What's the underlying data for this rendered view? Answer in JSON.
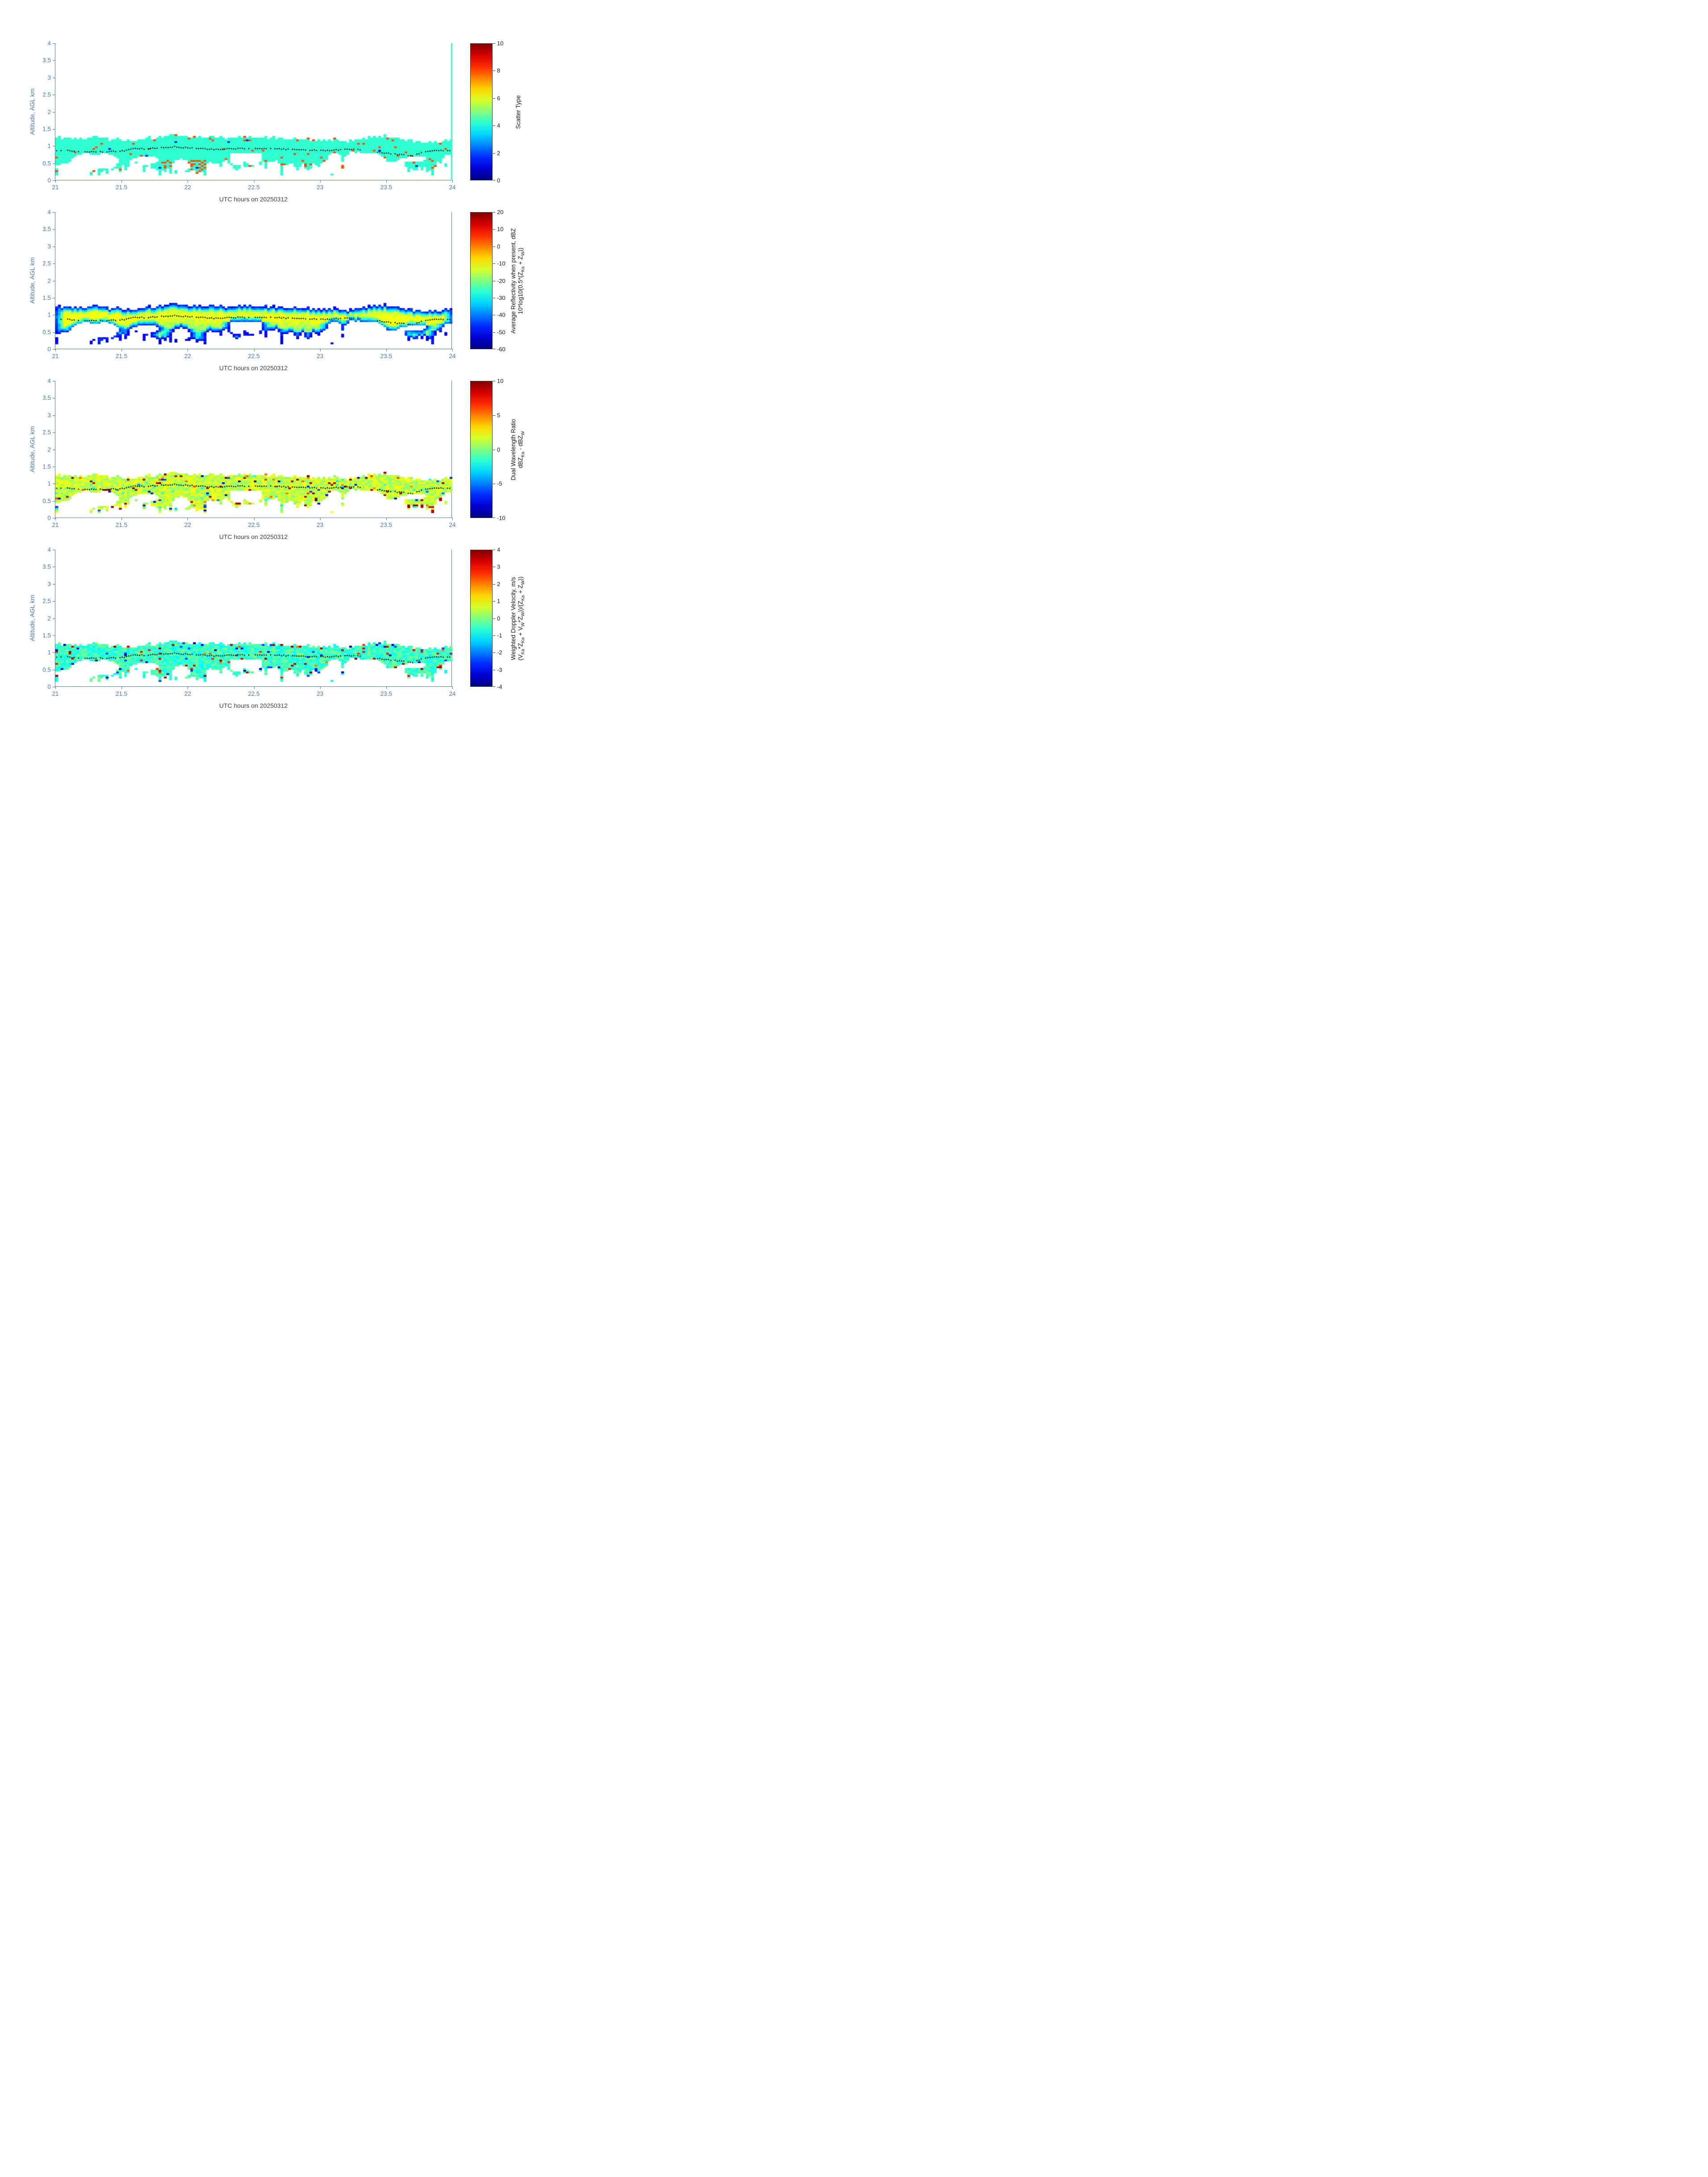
{
  "figure": {
    "background": "#ffffff",
    "axis_color": "#4878b8",
    "tick_label_color": "#4878b8",
    "xlabel_color": "#404040",
    "colorbar_text_color": "#1a1a1a",
    "overlay_dot_color": "#000000",
    "colormap": "jet"
  },
  "shared_axes": {
    "xlabel": "UTC hours on 20250312",
    "ylabel": "Altitude, AGL km",
    "xlim": [
      21,
      24
    ],
    "ylim": [
      0,
      4
    ],
    "xticks": [
      21,
      21.5,
      22,
      22.5,
      23,
      23.5,
      24
    ],
    "xtick_labels": [
      "21",
      "21.5",
      "22",
      "22.5",
      "23",
      "23.5",
      "24"
    ],
    "yticks": [
      0,
      0.5,
      1,
      1.5,
      2,
      2.5,
      3,
      3.5,
      4
    ],
    "ytick_labels": [
      "0",
      "0.5",
      "1",
      "1.5",
      "2",
      "2.5",
      "3",
      "3.5",
      "4"
    ]
  },
  "cloud_envelope": {
    "note": "Approximate envelope of the detected hydrometeor layer shared by all four panels; layer confined below about 1.35 km AGL.",
    "times_utc": [
      21.0,
      21.1,
      21.2,
      21.3,
      21.4,
      21.5,
      21.6,
      21.7,
      21.8,
      21.9,
      22.0,
      22.1,
      22.2,
      22.3,
      22.4,
      22.5,
      22.6,
      22.7,
      22.8,
      22.9,
      23.0,
      23.1,
      23.2,
      23.3,
      23.4,
      23.5,
      23.6,
      23.7,
      23.8,
      23.9,
      24.0
    ],
    "cloud_top_km": [
      1.27,
      1.22,
      1.25,
      1.28,
      1.22,
      1.18,
      1.12,
      1.22,
      1.3,
      1.33,
      1.3,
      1.27,
      1.3,
      1.25,
      1.3,
      1.28,
      1.25,
      1.22,
      1.25,
      1.2,
      1.18,
      1.2,
      1.15,
      1.22,
      1.28,
      1.3,
      1.25,
      1.15,
      1.1,
      1.15,
      1.18
    ],
    "cloud_base_km": [
      0.25,
      0.2,
      0.28,
      0.25,
      0.3,
      0.35,
      0.55,
      0.45,
      0.3,
      0.25,
      0.2,
      0.35,
      0.45,
      0.5,
      0.4,
      0.45,
      0.55,
      0.5,
      0.45,
      0.4,
      0.45,
      0.55,
      0.75,
      0.8,
      0.45,
      0.3,
      0.35,
      0.3,
      0.3,
      0.5,
      0.55
    ]
  },
  "overlay_line": {
    "description": "Black dotted line overlaid on every panel (approximate altitude trace near 0.9 km AGL).",
    "times_utc": [
      21.0,
      21.1,
      21.2,
      21.3,
      21.4,
      21.5,
      21.6,
      21.7,
      21.8,
      21.9,
      22.0,
      22.1,
      22.2,
      22.3,
      22.4,
      22.5,
      22.6,
      22.7,
      22.8,
      22.9,
      23.0,
      23.1,
      23.2,
      23.3,
      23.4,
      23.5,
      23.6,
      23.7,
      23.8,
      23.9,
      24.0
    ],
    "altitude_km": [
      0.88,
      0.87,
      0.84,
      0.83,
      0.84,
      0.85,
      0.93,
      0.92,
      0.96,
      0.98,
      0.95,
      0.93,
      0.9,
      0.92,
      0.93,
      0.92,
      0.93,
      0.92,
      0.9,
      0.88,
      0.87,
      0.88,
      0.9,
      0.9,
      0.85,
      0.8,
      0.75,
      0.72,
      0.85,
      0.87,
      0.88
    ]
  },
  "chart_data": [
    {
      "id": "scatter_type",
      "type": "heatmap",
      "title": "",
      "xlabel": "UTC hours on 20250312",
      "ylabel": "Altitude, AGL km",
      "xlim": [
        21,
        24
      ],
      "ylim": [
        0,
        4
      ],
      "colorbar": {
        "label_lines": [
          "Scatter Type"
        ],
        "min": 0,
        "max": 10,
        "ticks": [
          0,
          2,
          4,
          6,
          8,
          10
        ],
        "tick_labels": [
          "0",
          "2",
          "4",
          "6",
          "8",
          "10"
        ],
        "colormap": "jet"
      },
      "field": {
        "dominant_value": 4.2,
        "speckle_value": 8,
        "rare_value": 1.5,
        "note": "Layer between ~0.2 and ~1.3 km is almost uniformly scatter type ~4 (cyan) with scattered type ~8 (orange-red) pixels near the layer base/edges; thin full-height cyan column at t = 24."
      }
    },
    {
      "id": "average_reflectivity",
      "type": "heatmap",
      "title": "",
      "xlabel": "UTC hours on 20250312",
      "ylabel": "Altitude, AGL km",
      "xlim": [
        21,
        24
      ],
      "ylim": [
        0,
        4
      ],
      "colorbar": {
        "label_lines": [
          "Average Reflectivity when present, dBZ",
          "10*log10(0.5*(Z_Ka + Z_W))"
        ],
        "min": -60,
        "max": 20,
        "ticks": [
          -60,
          -50,
          -40,
          -30,
          -20,
          -10,
          0,
          10,
          20
        ],
        "tick_labels": [
          "-60",
          "-50",
          "-40",
          "-30",
          "-20",
          "-10",
          "0",
          "10",
          "20"
        ],
        "colormap": "jet"
      },
      "field": {
        "edge_value_dBZ": -52,
        "interior_value_dBZ": -20,
        "ridge_value_dBZ": -12,
        "note": "Dark blue (~-50 dBZ) rim at layer top/base grading to green (~-25) inside, with a yellow ridge (~-12 to -15 dBZ) along the dotted line; brighter yellow blobs near 21.1-21.5 and 23.4-23.8 UTC."
      }
    },
    {
      "id": "dual_wavelength_ratio",
      "type": "heatmap",
      "title": "",
      "xlabel": "UTC hours on 20250312",
      "ylabel": "Altitude, AGL km",
      "xlim": [
        21,
        24
      ],
      "ylim": [
        0,
        4
      ],
      "colorbar": {
        "label_lines": [
          "Dual Wavelength Ratio",
          "dBZ_Ka - dBZ_W"
        ],
        "min": -10,
        "max": 10,
        "ticks": [
          -10,
          -5,
          0,
          5,
          10
        ],
        "tick_labels": [
          "-10",
          "-5",
          "0",
          "5",
          "10"
        ],
        "colormap": "jet"
      },
      "field": {
        "typical_value_dB": 1.3,
        "speckle_values_dB": [
          9,
          5,
          -6,
          -2
        ],
        "note": "Layer mostly yellow (~0 to +3 dB) with noisy orange/dark-red (+5 to +10) and occasional blue/cyan (-2 to -7) pixels, densest along the layer top edge."
      }
    },
    {
      "id": "weighted_doppler_velocity",
      "type": "heatmap",
      "title": "",
      "xlabel": "UTC hours on 20250312",
      "ylabel": "Altitude, AGL km",
      "xlim": [
        21,
        24
      ],
      "ylim": [
        0,
        4
      ],
      "colorbar": {
        "label_lines": [
          "Weighted Doppler Velocity, m/s",
          "(V_Ka*Z_Ka + V_W*Z_W))/(Z_Ka + Z_W))"
        ],
        "min": -4,
        "max": 4,
        "ticks": [
          -4,
          -3,
          -2,
          -1,
          0,
          1,
          2,
          3,
          4
        ],
        "tick_labels": [
          "-4",
          "-3",
          "-2",
          "-1",
          "0",
          "1",
          "2",
          "3",
          "4"
        ],
        "colormap": "jet"
      },
      "field": {
        "typical_value_ms": -0.55,
        "speckle_values_ms": [
          3.2,
          -3.2,
          2.2,
          -2.5
        ],
        "note": "Layer mostly cyan-green (~-1 to 0 m/s) with scattered red/dark-red (+2 to +4) and dark-blue (-3 to -4) pixels concentrated along the layer top."
      }
    }
  ]
}
